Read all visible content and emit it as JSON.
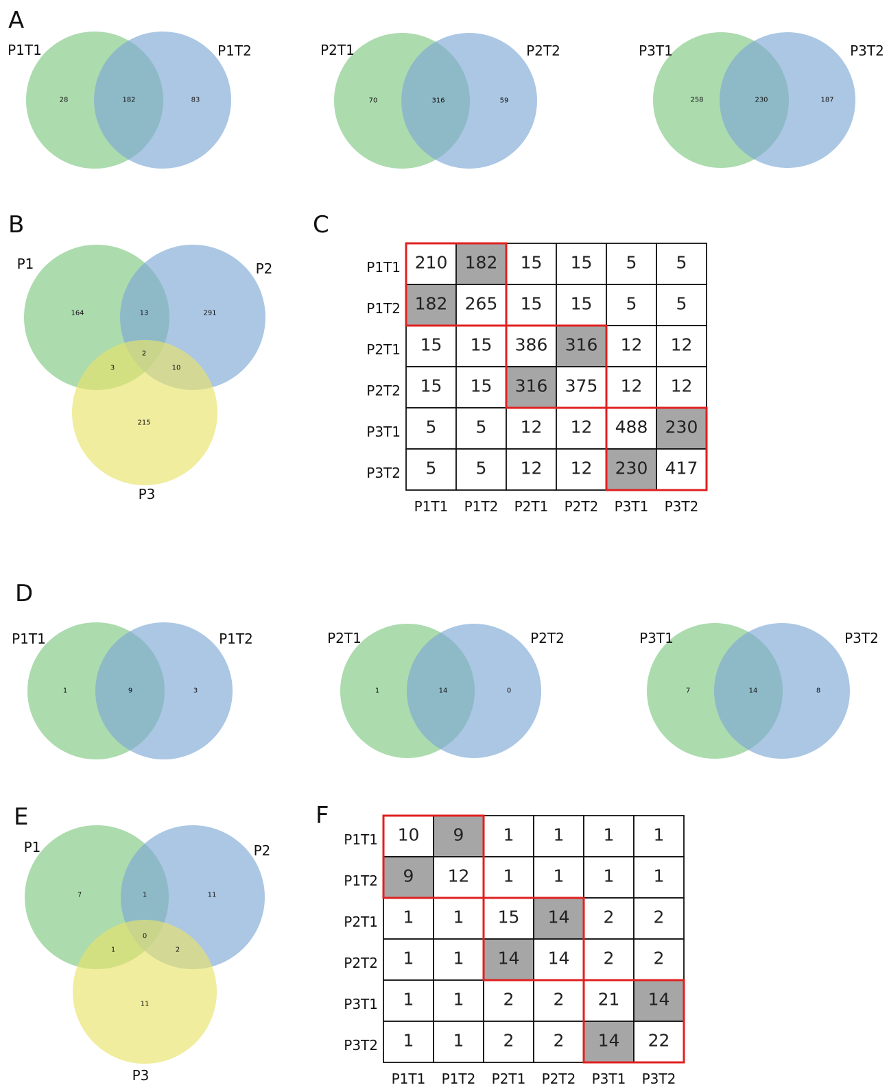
{
  "colors": {
    "green": "#80c883",
    "blue": "#7ea9d6",
    "yellow": "#e8e46a",
    "gray_fill": "#a6a6a6",
    "red_box": "#e02020",
    "grid": "#111111"
  },
  "panels": {
    "A": {
      "letter": "A",
      "venns": [
        {
          "label_left": "P1T1",
          "label_right": "P1T2",
          "left_only": "28",
          "both": "182",
          "right_only": "83"
        },
        {
          "label_left": "P2T1",
          "label_right": "P2T2",
          "left_only": "70",
          "both": "316",
          "right_only": "59"
        },
        {
          "label_left": "P3T1",
          "label_right": "P3T2",
          "left_only": "258",
          "both": "230",
          "right_only": "187"
        }
      ]
    },
    "B": {
      "letter": "B",
      "sets": [
        "P1",
        "P2",
        "P3"
      ],
      "regions": {
        "p1_only": "164",
        "p1_p2": "13",
        "p2_only": "291",
        "all": "2",
        "p1_p3": "3",
        "p2_p3": "10",
        "p3_only": "215"
      }
    },
    "C": {
      "letter": "C",
      "labels": [
        "P1T1",
        "P1T2",
        "P2T1",
        "P2T2",
        "P3T1",
        "P3T2"
      ],
      "matrix": [
        [
          "210",
          "182",
          "15",
          "15",
          "5",
          "5"
        ],
        [
          "182",
          "265",
          "15",
          "15",
          "5",
          "5"
        ],
        [
          "15",
          "15",
          "386",
          "316",
          "12",
          "12"
        ],
        [
          "15",
          "15",
          "316",
          "375",
          "12",
          "12"
        ],
        [
          "5",
          "5",
          "12",
          "12",
          "488",
          "230"
        ],
        [
          "5",
          "5",
          "12",
          "12",
          "230",
          "417"
        ]
      ],
      "highlighted": [
        [
          0,
          1
        ],
        [
          1,
          0
        ],
        [
          2,
          3
        ],
        [
          3,
          2
        ],
        [
          4,
          5
        ],
        [
          5,
          4
        ]
      ],
      "blocks": [
        [
          0,
          1
        ],
        [
          2,
          3
        ],
        [
          4,
          5
        ]
      ]
    },
    "D": {
      "letter": "D",
      "venns": [
        {
          "label_left": "P1T1",
          "label_right": "P1T2",
          "left_only": "1",
          "both": "9",
          "right_only": "3"
        },
        {
          "label_left": "P2T1",
          "label_right": "P2T2",
          "left_only": "1",
          "both": "14",
          "right_only": "0"
        },
        {
          "label_left": "P3T1",
          "label_right": "P3T2",
          "left_only": "7",
          "both": "14",
          "right_only": "8"
        }
      ]
    },
    "E": {
      "letter": "E",
      "sets": [
        "P1",
        "P2",
        "P3"
      ],
      "regions": {
        "p1_only": "7",
        "p1_p2": "1",
        "p2_only": "11",
        "all": "0",
        "p1_p3": "1",
        "p2_p3": "2",
        "p3_only": "11"
      }
    },
    "F": {
      "letter": "F",
      "labels": [
        "P1T1",
        "P1T2",
        "P2T1",
        "P2T2",
        "P3T1",
        "P3T2"
      ],
      "matrix": [
        [
          "10",
          "9",
          "1",
          "1",
          "1",
          "1"
        ],
        [
          "9",
          "12",
          "1",
          "1",
          "1",
          "1"
        ],
        [
          "1",
          "1",
          "15",
          "14",
          "2",
          "2"
        ],
        [
          "1",
          "1",
          "14",
          "14",
          "2",
          "2"
        ],
        [
          "1",
          "1",
          "2",
          "2",
          "21",
          "14"
        ],
        [
          "1",
          "1",
          "2",
          "2",
          "14",
          "22"
        ]
      ],
      "highlighted": [
        [
          0,
          1
        ],
        [
          1,
          0
        ],
        [
          2,
          3
        ],
        [
          3,
          2
        ],
        [
          4,
          5
        ],
        [
          5,
          4
        ]
      ],
      "blocks": [
        [
          0,
          1
        ],
        [
          2,
          3
        ],
        [
          4,
          5
        ]
      ]
    }
  }
}
